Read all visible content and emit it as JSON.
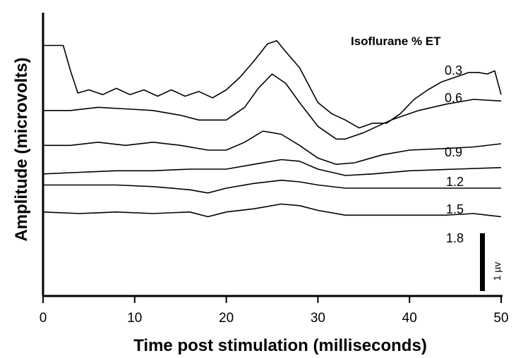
{
  "chart_data": {
    "type": "line",
    "title": "",
    "xlabel": "Time post stimulation (milliseconds)",
    "ylabel": "Amplitude (microvolts)",
    "xlim": [
      0,
      50
    ],
    "x_ticks": [
      "0",
      "10",
      "20",
      "30",
      "40",
      "50"
    ],
    "y_ticks": [],
    "legend_title": "Isoflurane % ET",
    "scale_bar_label": "1 µv",
    "scale_bar_value": 1,
    "series": [
      {
        "name": "0.3",
        "x": [
          0,
          2.2,
          3,
          3.8,
          5,
          6.5,
          8,
          9.5,
          11,
          12.5,
          14,
          15.5,
          17,
          18.5,
          20,
          21.5,
          23,
          24.5,
          25.5,
          26.5,
          28,
          30,
          31.5,
          33,
          34.5,
          36,
          37.5,
          39,
          40.5,
          42,
          43.5,
          45,
          46.5,
          47.5,
          48.5,
          49.3,
          50
        ],
        "y": [
          7.9,
          7.9,
          7.1,
          6.4,
          6.5,
          6.35,
          6.55,
          6.35,
          6.5,
          6.3,
          6.5,
          6.3,
          6.45,
          6.25,
          6.5,
          6.9,
          7.4,
          7.95,
          8.05,
          7.7,
          7.2,
          6.1,
          5.75,
          5.55,
          5.3,
          5.45,
          5.45,
          5.75,
          6.2,
          6.5,
          6.75,
          6.9,
          7.05,
          7.05,
          7.0,
          7.1,
          6.35
        ]
      },
      {
        "name": "0.6",
        "x": [
          0,
          3,
          6,
          9,
          12,
          15,
          17,
          20,
          22,
          23.5,
          25,
          26.5,
          28,
          30,
          32,
          33,
          35,
          38,
          41,
          44,
          47,
          50
        ],
        "y": [
          5.85,
          5.85,
          5.95,
          5.9,
          5.85,
          5.7,
          5.55,
          5.55,
          5.95,
          6.55,
          7.0,
          6.7,
          6.1,
          5.35,
          4.95,
          4.95,
          5.15,
          5.55,
          5.85,
          6.05,
          6.2,
          6.15
        ]
      },
      {
        "name": "0.9",
        "x": [
          0,
          3,
          6,
          9,
          12,
          15,
          18,
          20,
          22,
          24,
          26,
          28,
          30,
          32,
          34,
          37,
          40,
          44,
          47,
          50
        ],
        "y": [
          4.75,
          4.75,
          4.85,
          4.75,
          4.85,
          4.75,
          4.6,
          4.6,
          4.85,
          5.2,
          5.1,
          4.75,
          4.35,
          4.15,
          4.2,
          4.45,
          4.6,
          4.65,
          4.7,
          4.8
        ]
      },
      {
        "name": "1.2",
        "x": [
          0,
          4,
          8,
          12,
          16,
          20,
          23,
          26,
          28,
          30,
          33,
          36,
          40,
          45,
          50
        ],
        "y": [
          3.85,
          3.9,
          3.95,
          3.95,
          4.0,
          4.0,
          4.15,
          4.3,
          4.25,
          4.0,
          3.8,
          3.85,
          3.95,
          4.0,
          4.05
        ]
      },
      {
        "name": "1.5",
        "x": [
          0,
          4,
          8,
          12,
          16,
          18,
          20,
          23,
          26,
          28,
          30,
          33,
          36,
          40,
          45,
          50
        ],
        "y": [
          3.5,
          3.5,
          3.5,
          3.45,
          3.35,
          3.25,
          3.4,
          3.55,
          3.65,
          3.6,
          3.5,
          3.4,
          3.4,
          3.4,
          3.4,
          3.4
        ]
      },
      {
        "name": "1.8",
        "x": [
          0,
          4,
          8,
          12,
          16,
          18,
          20,
          23,
          26,
          28,
          30,
          33,
          36,
          40,
          44,
          47,
          48.5,
          50
        ],
        "y": [
          2.65,
          2.6,
          2.65,
          2.6,
          2.65,
          2.5,
          2.65,
          2.75,
          2.9,
          2.85,
          2.7,
          2.55,
          2.55,
          2.55,
          2.55,
          2.6,
          2.55,
          2.5
        ]
      }
    ]
  }
}
